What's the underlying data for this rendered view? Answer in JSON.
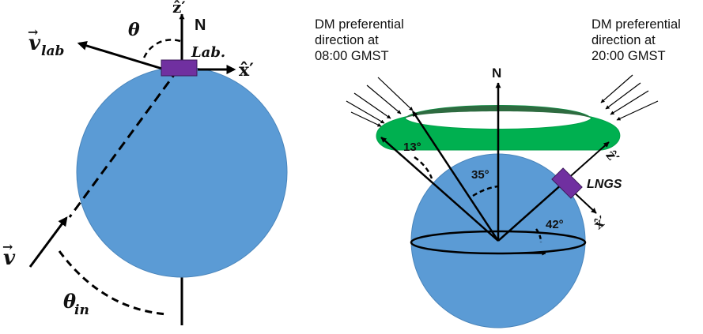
{
  "left_panel": {
    "labels": {
      "z_axis": "ẑ′",
      "north": "N",
      "theta": "θ",
      "v_lab_base": "v",
      "v_lab_sub": "lab",
      "lab": "Lab.",
      "x_axis": "x̂′",
      "v": "v",
      "theta_in_base": "θ",
      "theta_in_sub": "in"
    },
    "colors": {
      "sphere": "#5b9bd5",
      "detector": "#7030a0"
    }
  },
  "right_panel": {
    "labels": {
      "dm_08_lines": [
        "DM preferential",
        "direction at",
        "08:00 GMST"
      ],
      "dm_20_lines": [
        "DM preferential",
        "direction at",
        "20:00 GMST"
      ],
      "north": "N",
      "angle_13": "13°",
      "angle_35": "35°",
      "angle_42": "42°",
      "lngs": "LNGS",
      "z_axis": "ẑ′",
      "x_axis": "x̂′"
    },
    "colors": {
      "sphere": "#5b9bd5",
      "ring": "#00b050",
      "ring_dark": "#2e6b40",
      "detector": "#7030a0"
    }
  }
}
